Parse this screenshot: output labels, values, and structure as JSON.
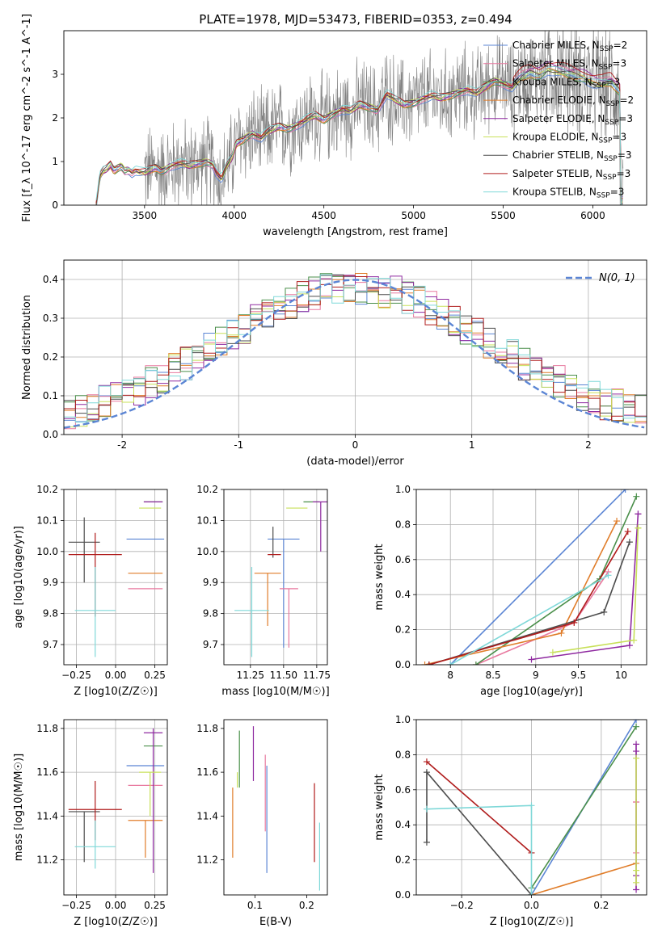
{
  "figure_title": "PLATE=1978, MJD=53473, FIBERID=0353, z=0.494",
  "colors": {
    "Chabrier MILES": "#5b85d4",
    "Salpeter MILES": "#e8799f",
    "Kroupa MILES": "#4a8f4a",
    "Chabrier ELODIE": "#e07d2a",
    "Salpeter ELODIE": "#8f2aa0",
    "Kroupa ELODIE": "#c8e05a",
    "Chabrier STELIB": "#4d4d4d",
    "Salpeter STELIB": "#b01c1c",
    "Kroupa STELIB": "#7fd8d8",
    "data": "#808080",
    "normal": "#5b85d4"
  },
  "chart_data": [
    {
      "id": "spectrum",
      "type": "line",
      "title": "PLATE=1978, MJD=53473, FIBERID=0353, z=0.494",
      "xlabel": "wavelength [Angstrom, rest frame]",
      "ylabel": "Flux [f_λ 10^-17 erg cm^-2 s^-1 A^-1]",
      "xlim": [
        3050,
        6300
      ],
      "ylim": [
        0,
        4
      ],
      "xticks": [
        3500,
        4000,
        4500,
        5000,
        5500,
        6000
      ],
      "yticks": [
        0,
        1,
        2,
        3
      ],
      "grid": false,
      "legend": "top-right",
      "legend_entries": [
        {
          "name": "Chabrier MILES",
          "label": "Chabrier MILES, N",
          "sub": "SSP",
          "suffix": "=2"
        },
        {
          "name": "Salpeter MILES",
          "label": "Salpeter MILES, N",
          "sub": "SSP",
          "suffix": "=3"
        },
        {
          "name": "Kroupa MILES",
          "label": "Kroupa MILES, N",
          "sub": "SSP",
          "suffix": "=3"
        },
        {
          "name": "Chabrier ELODIE",
          "label": "Chabrier ELODIE, N",
          "sub": "SSP",
          "suffix": "=2"
        },
        {
          "name": "Salpeter ELODIE",
          "label": "Salpeter ELODIE, N",
          "sub": "SSP",
          "suffix": "=3"
        },
        {
          "name": "Kroupa ELODIE",
          "label": "Kroupa ELODIE, N",
          "sub": "SSP",
          "suffix": "=3"
        },
        {
          "name": "Chabrier STELIB",
          "label": "Chabrier STELIB, N",
          "sub": "SSP",
          "suffix": "=3"
        },
        {
          "name": "Salpeter STELIB",
          "label": "Salpeter STELIB, N",
          "sub": "SSP",
          "suffix": "=3"
        },
        {
          "name": "Kroupa STELIB",
          "label": "Kroupa STELIB, N",
          "sub": "SSP",
          "suffix": "=3"
        }
      ],
      "model_continuum": {
        "x": [
          3230,
          3240,
          3250,
          3270,
          3290,
          3310,
          3330,
          3350,
          3370,
          3390,
          3410,
          3430,
          3450,
          3470,
          3500,
          3530,
          3560,
          3600,
          3650,
          3700,
          3750,
          3800,
          3850,
          3880,
          3900,
          3930,
          3960,
          3990,
          4010,
          4050,
          4100,
          4150,
          4200,
          4250,
          4300,
          4350,
          4400,
          4450,
          4500,
          4550,
          4600,
          4650,
          4700,
          4750,
          4800,
          4850,
          4900,
          4950,
          5000,
          5050,
          5100,
          5150,
          5200,
          5250,
          5300,
          5350,
          5400,
          5450,
          5500,
          5550,
          5600,
          5650,
          5700,
          5750,
          5800,
          5850,
          5900,
          5950,
          6000,
          6050,
          6100,
          6150
        ],
        "y": [
          0.0,
          0.3,
          0.65,
          0.78,
          0.82,
          0.92,
          0.78,
          0.85,
          0.9,
          0.8,
          0.82,
          0.75,
          0.8,
          0.76,
          0.74,
          0.8,
          0.85,
          0.78,
          0.92,
          0.95,
          0.9,
          0.95,
          1.0,
          0.95,
          0.75,
          0.6,
          0.9,
          1.1,
          1.4,
          1.5,
          1.65,
          1.55,
          1.7,
          1.8,
          1.75,
          1.85,
          1.95,
          2.05,
          1.95,
          2.1,
          2.2,
          2.15,
          2.3,
          2.25,
          2.2,
          2.55,
          2.4,
          2.3,
          2.35,
          2.45,
          2.5,
          2.45,
          2.5,
          2.6,
          2.65,
          2.55,
          2.7,
          2.85,
          2.8,
          2.7,
          2.9,
          3.0,
          2.95,
          3.1,
          3.05,
          3.0,
          2.95,
          2.9,
          2.8,
          2.75,
          2.8,
          2.6
        ]
      }
    },
    {
      "id": "residual",
      "type": "line",
      "xlabel": "(data-model)/error",
      "ylabel": "Normed distribution",
      "xlim": [
        -2.5,
        2.5
      ],
      "ylim": [
        0,
        0.45
      ],
      "xticks": [
        -2,
        -1,
        0,
        1,
        2
      ],
      "yticks": [
        0.0,
        0.1,
        0.2,
        0.3,
        0.4
      ],
      "grid": true,
      "legend": "top-right",
      "legend_label": "N(0, 1)",
      "normal_mu": 0,
      "normal_sigma": 1
    },
    {
      "id": "age_vs_Z",
      "type": "scatter",
      "xlabel": "Z [log10(Z/Z☉)]",
      "ylabel": "age  [log10(age/yr)]",
      "xlim": [
        -0.33,
        0.33
      ],
      "ylim": [
        9.635,
        10.2
      ],
      "xticks": [
        -0.25,
        0.0,
        0.25
      ],
      "xtick_labels": [
        "−0.25",
        "0.00",
        "0.25"
      ],
      "yticks": [
        9.7,
        9.8,
        9.9,
        10.0,
        10.1,
        10.2
      ],
      "grid": true,
      "points": [
        {
          "series": "Chabrier MILES",
          "x": 0.19,
          "xerr": 0.12,
          "y": 10.04,
          "yerr_lo": 0.0,
          "yerr_hi": 0.0
        },
        {
          "series": "Salpeter MILES",
          "x": 0.19,
          "xerr": 0.11,
          "y": 9.88,
          "yerr_lo": 0.0,
          "yerr_hi": 0.0
        },
        {
          "series": "Kroupa MILES",
          "x": 0.24,
          "xerr": 0.06,
          "y": 10.16,
          "yerr_lo": 0.0,
          "yerr_hi": 0.0
        },
        {
          "series": "Chabrier ELODIE",
          "x": 0.19,
          "xerr": 0.11,
          "y": 9.93,
          "yerr_lo": 0.0,
          "yerr_hi": 0.0
        },
        {
          "series": "Salpeter ELODIE",
          "x": 0.24,
          "xerr": 0.06,
          "y": 10.16,
          "yerr_lo": 0.0,
          "yerr_hi": 0.0
        },
        {
          "series": "Kroupa ELODIE",
          "x": 0.22,
          "xerr": 0.07,
          "y": 10.14,
          "yerr_lo": 0.0,
          "yerr_hi": 0.0
        },
        {
          "series": "Chabrier STELIB",
          "x": -0.2,
          "xerr": 0.1,
          "y": 10.03,
          "yerr_lo": 0.13,
          "yerr_hi": 0.08
        },
        {
          "series": "Salpeter STELIB",
          "x": -0.13,
          "xerr": 0.17,
          "y": 9.99,
          "yerr_lo": 0.2,
          "yerr_hi": 0.07
        },
        {
          "series": "Kroupa STELIB",
          "x": -0.13,
          "xerr": 0.13,
          "y": 9.81,
          "yerr_lo": 0.15,
          "yerr_hi": 0.14
        }
      ]
    },
    {
      "id": "age_vs_mass",
      "type": "scatter",
      "xlabel": "mass [log10(M/M☉)]",
      "xlim": [
        11.05,
        11.83
      ],
      "ylim": [
        9.635,
        10.2
      ],
      "xticks": [
        11.25,
        11.5,
        11.75
      ],
      "xtick_labels": [
        "11.25",
        "11.50",
        "11.75"
      ],
      "yticks": [
        9.7,
        9.8,
        9.9,
        10.0,
        10.1,
        10.2
      ],
      "grid": true,
      "points": [
        {
          "series": "Chabrier MILES",
          "x": 11.5,
          "xerr": 0.12,
          "y": 10.04,
          "yerr_lo": 0.35,
          "yerr_hi": 0.0
        },
        {
          "series": "Salpeter MILES",
          "x": 11.54,
          "xerr": 0.07,
          "y": 9.88,
          "yerr_lo": 0.19,
          "yerr_hi": 0.0
        },
        {
          "series": "Kroupa MILES",
          "x": 11.71,
          "xerr": 0.06,
          "y": 10.16,
          "yerr_lo": 0.0,
          "yerr_hi": 0.0
        },
        {
          "series": "Chabrier ELODIE",
          "x": 11.38,
          "xerr": 0.1,
          "y": 9.93,
          "yerr_lo": 0.17,
          "yerr_hi": 0.0
        },
        {
          "series": "Salpeter ELODIE",
          "x": 11.78,
          "xerr": 0.06,
          "y": 10.16,
          "yerr_lo": 0.16,
          "yerr_hi": 0.0
        },
        {
          "series": "Kroupa ELODIE",
          "x": 11.6,
          "xerr": 0.08,
          "y": 10.14,
          "yerr_lo": 0.0,
          "yerr_hi": 0.0
        },
        {
          "series": "Chabrier STELIB",
          "x": 11.42,
          "xerr": 0.0,
          "y": 10.03,
          "yerr_lo": 0.05,
          "yerr_hi": 0.05
        },
        {
          "series": "Salpeter STELIB",
          "x": 11.43,
          "xerr": 0.05,
          "y": 9.99,
          "yerr_lo": 0.0,
          "yerr_hi": 0.0
        },
        {
          "series": "Kroupa STELIB",
          "x": 11.26,
          "xerr": 0.13,
          "y": 9.81,
          "yerr_lo": 0.15,
          "yerr_hi": 0.14
        }
      ]
    },
    {
      "id": "massweight_vs_age",
      "type": "line",
      "xlabel": "age  [log10(age/yr)]",
      "ylabel": "mass weight",
      "xlim": [
        7.6,
        10.3
      ],
      "ylim": [
        0,
        1
      ],
      "xticks": [
        8.0,
        8.5,
        9.0,
        9.5,
        10.0
      ],
      "yticks": [
        0.0,
        0.2,
        0.4,
        0.6,
        0.8,
        1.0
      ],
      "grid": true,
      "series": [
        {
          "name": "Chabrier MILES",
          "x": [
            8.0,
            10.05
          ],
          "y": [
            0.0,
            1.0
          ]
        },
        {
          "name": "Salpeter MILES",
          "x": [
            8.3,
            9.45,
            9.85
          ],
          "y": [
            0.0,
            0.24,
            0.53
          ]
        },
        {
          "name": "Kroupa MILES",
          "x": [
            8.3,
            9.75,
            10.18
          ],
          "y": [
            0.0,
            0.49,
            0.96
          ]
        },
        {
          "name": "Chabrier ELODIE",
          "x": [
            7.7,
            9.3,
            9.95
          ],
          "y": [
            0.0,
            0.18,
            0.82
          ]
        },
        {
          "name": "Salpeter ELODIE",
          "x": [
            8.95,
            10.1,
            10.2,
            10.2
          ],
          "y": [
            0.03,
            0.11,
            0.86,
            0.86
          ]
        },
        {
          "name": "Kroupa ELODIE",
          "x": [
            9.2,
            10.15,
            10.2,
            10.2
          ],
          "y": [
            0.07,
            0.14,
            0.78,
            0.78
          ]
        },
        {
          "name": "Chabrier STELIB",
          "x": [
            7.75,
            9.8,
            10.1
          ],
          "y": [
            0.0,
            0.3,
            0.7
          ]
        },
        {
          "name": "Salpeter STELIB",
          "x": [
            7.75,
            9.45,
            10.08
          ],
          "y": [
            0.0,
            0.24,
            0.76
          ]
        },
        {
          "name": "Kroupa STELIB",
          "x": [
            8.0,
            9.85
          ],
          "y": [
            0.0,
            0.51
          ]
        }
      ]
    },
    {
      "id": "mass_vs_Z",
      "type": "scatter",
      "xlabel": "Z [log10(Z/Z☉)]",
      "ylabel": "mass [log10(M/M☉)]",
      "xlim": [
        -0.33,
        0.33
      ],
      "ylim": [
        11.04,
        11.84
      ],
      "xticks": [
        -0.25,
        0.0,
        0.25
      ],
      "xtick_labels": [
        "−0.25",
        "0.00",
        "0.25"
      ],
      "yticks": [
        11.2,
        11.4,
        11.6,
        11.8
      ],
      "grid": true,
      "points": [
        {
          "series": "Chabrier MILES",
          "x": 0.19,
          "xerr": 0.12,
          "y": 11.63,
          "yerr_lo": 0.0,
          "yerr_hi": 0.0
        },
        {
          "series": "Salpeter MILES",
          "x": 0.19,
          "xerr": 0.11,
          "y": 11.54,
          "yerr_lo": 0.0,
          "yerr_hi": 0.0
        },
        {
          "series": "Kroupa MILES",
          "x": 0.24,
          "xerr": 0.06,
          "y": 11.72,
          "yerr_lo": 0.0,
          "yerr_hi": 0.0
        },
        {
          "series": "Chabrier ELODIE",
          "x": 0.19,
          "xerr": 0.11,
          "y": 11.38,
          "yerr_lo": 0.17,
          "yerr_hi": 0.0
        },
        {
          "series": "Salpeter ELODIE",
          "x": 0.24,
          "xerr": 0.06,
          "y": 11.78,
          "yerr_lo": 0.64,
          "yerr_hi": 0.02
        },
        {
          "series": "Kroupa ELODIE",
          "x": 0.22,
          "xerr": 0.07,
          "y": 11.6,
          "yerr_lo": 0.2,
          "yerr_hi": 0.0
        },
        {
          "series": "Chabrier STELIB",
          "x": -0.2,
          "xerr": 0.1,
          "y": 11.42,
          "yerr_lo": 0.23,
          "yerr_hi": 0.0
        },
        {
          "series": "Salpeter STELIB",
          "x": -0.13,
          "xerr": 0.17,
          "y": 11.43,
          "yerr_lo": 0.14,
          "yerr_hi": 0.13
        },
        {
          "series": "Kroupa STELIB",
          "x": -0.13,
          "xerr": 0.13,
          "y": 11.26,
          "yerr_lo": 0.1,
          "yerr_hi": 0.12
        }
      ]
    },
    {
      "id": "mass_vs_ebv",
      "type": "scatter",
      "xlabel": "E(B-V)",
      "xlim": [
        0.04,
        0.24
      ],
      "ylim": [
        11.04,
        11.84
      ],
      "xticks": [
        0.1,
        0.2
      ],
      "xtick_labels": [
        "0.1",
        "0.2"
      ],
      "yticks": [
        11.2,
        11.4,
        11.6,
        11.8
      ],
      "grid": false,
      "points": [
        {
          "series": "Chabrier MILES",
          "x": 0.123,
          "y": 11.42,
          "yerr_lo": 0.28,
          "yerr_hi": 0.21
        },
        {
          "series": "Salpeter MILES",
          "x": 0.12,
          "y": 11.5,
          "yerr_lo": 0.17,
          "yerr_hi": 0.18
        },
        {
          "series": "Kroupa MILES",
          "x": 0.07,
          "y": 11.66,
          "yerr_lo": 0.13,
          "yerr_hi": 0.13
        },
        {
          "series": "Chabrier ELODIE",
          "x": 0.057,
          "y": 11.37,
          "yerr_lo": 0.16,
          "yerr_hi": 0.16
        },
        {
          "series": "Salpeter ELODIE",
          "x": 0.097,
          "y": 11.68,
          "yerr_lo": 0.12,
          "yerr_hi": 0.13
        },
        {
          "series": "Kroupa ELODIE",
          "x": 0.066,
          "y": 11.6,
          "yerr_lo": 0.07,
          "yerr_hi": 0.0
        },
        {
          "series": "Chabrier STELIB",
          "x": 0.074,
          "y": 11.6,
          "yerr_lo": 0.0,
          "yerr_hi": 0.0
        },
        {
          "series": "Salpeter STELIB",
          "x": 0.215,
          "y": 11.37,
          "yerr_lo": 0.18,
          "yerr_hi": 0.18
        },
        {
          "series": "Kroupa STELIB",
          "x": 0.225,
          "y": 11.22,
          "yerr_lo": 0.16,
          "yerr_hi": 0.15
        }
      ]
    },
    {
      "id": "massweight_vs_Z",
      "type": "line",
      "xlabel": "Z [log10(Z/Z☉)]",
      "ylabel": "mass weight",
      "xlim": [
        -0.33,
        0.33
      ],
      "ylim": [
        0,
        1
      ],
      "xticks": [
        -0.2,
        0.0,
        0.2
      ],
      "xtick_labels": [
        "−0.2",
        "0.0",
        "0.2"
      ],
      "yticks": [
        0.0,
        0.2,
        0.4,
        0.6,
        0.8,
        1.0
      ],
      "grid": true,
      "series": [
        {
          "name": "Chabrier MILES",
          "x": [
            0.0,
            0.3
          ],
          "y": [
            0.0,
            1.0
          ]
        },
        {
          "name": "Salpeter MILES",
          "x": [
            0.3,
            0.3,
            0.3
          ],
          "y": [
            0.24,
            0.53,
            0.53
          ]
        },
        {
          "name": "Kroupa MILES",
          "x": [
            0.0,
            0.3
          ],
          "y": [
            0.04,
            0.96
          ]
        },
        {
          "name": "Chabrier ELODIE",
          "x": [
            0.0,
            0.3
          ],
          "y": [
            0.0,
            0.18
          ]
        },
        {
          "name": "Salpeter ELODIE",
          "x": [
            0.3,
            0.3,
            0.3,
            0.3
          ],
          "y": [
            0.03,
            0.11,
            0.82,
            0.86
          ]
        },
        {
          "name": "Kroupa ELODIE",
          "x": [
            0.3,
            0.3,
            0.3
          ],
          "y": [
            0.07,
            0.14,
            0.78
          ]
        },
        {
          "name": "Chabrier STELIB",
          "x": [
            -0.3,
            -0.3,
            0.0
          ],
          "y": [
            0.3,
            0.7,
            0.0
          ]
        },
        {
          "name": "Salpeter STELIB",
          "x": [
            -0.3,
            0.0
          ],
          "y": [
            0.76,
            0.24
          ]
        },
        {
          "name": "Kroupa STELIB",
          "x": [
            -0.3,
            0.0,
            0.0
          ],
          "y": [
            0.49,
            0.51,
            0.0
          ]
        }
      ]
    }
  ]
}
